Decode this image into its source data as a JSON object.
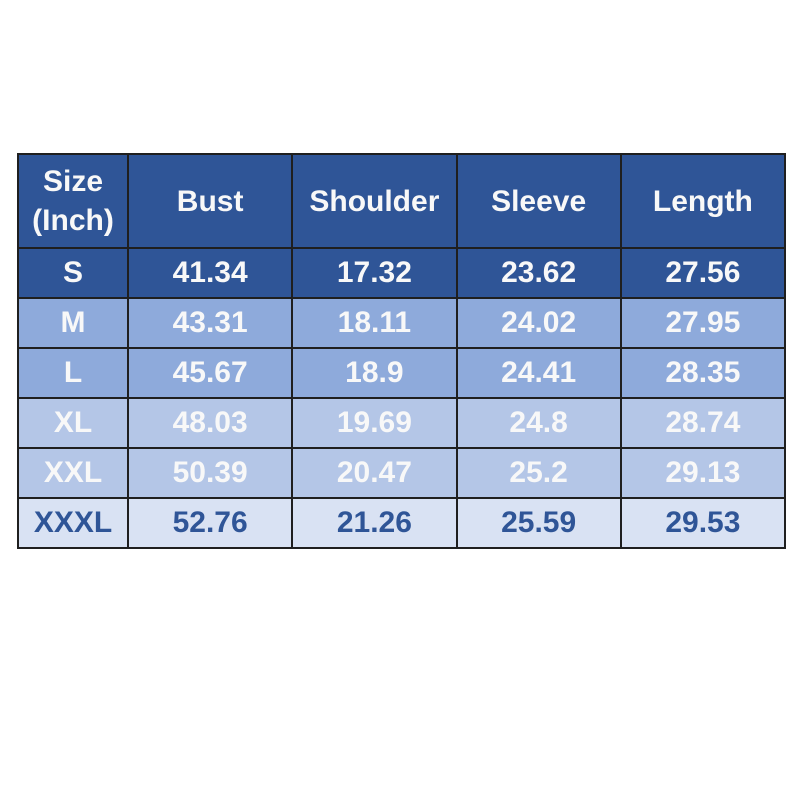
{
  "colors": {
    "header_bg": "#2F5597",
    "row_mid_bg": "#8EAADB",
    "row_light_bg": "#B4C6E7",
    "row_pale_bg": "#D9E2F3",
    "text_light": "#F8F8F8",
    "text_dark": "#2F5597",
    "border": "#1F1F1F",
    "page_bg": "#FFFFFF"
  },
  "chart_data": {
    "type": "table",
    "columns": [
      "Size (Inch)",
      "Bust",
      "Shoulder",
      "Sleeve",
      "Length"
    ],
    "rows": [
      {
        "label": "S",
        "tier": "dark",
        "values": [
          41.34,
          17.32,
          23.62,
          27.56
        ]
      },
      {
        "label": "M",
        "tier": "mid",
        "values": [
          43.31,
          18.11,
          24.02,
          27.95
        ]
      },
      {
        "label": "L",
        "tier": "mid",
        "values": [
          45.67,
          18.9,
          24.41,
          28.35
        ]
      },
      {
        "label": "XL",
        "tier": "light",
        "values": [
          48.03,
          19.69,
          24.8,
          28.74
        ]
      },
      {
        "label": "XXL",
        "tier": "light",
        "values": [
          50.39,
          20.47,
          25.2,
          29.13
        ]
      },
      {
        "label": "XXXL",
        "tier": "pale",
        "values": [
          52.76,
          21.26,
          25.59,
          29.53
        ]
      }
    ],
    "layout": {
      "grid": true,
      "unit": "inch",
      "header_position": "top"
    }
  }
}
